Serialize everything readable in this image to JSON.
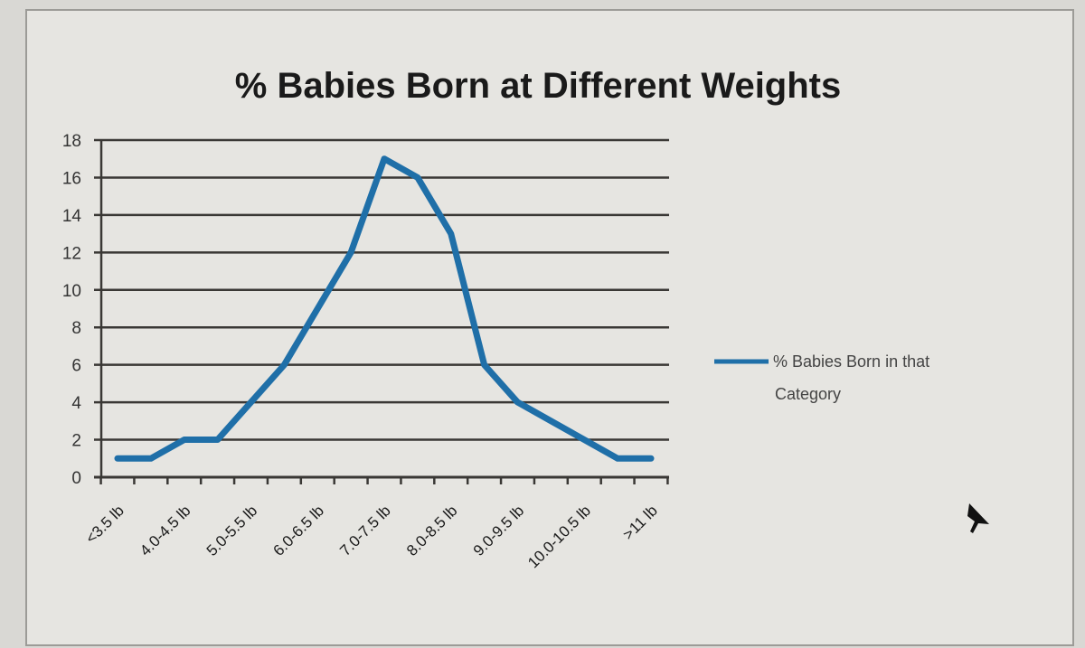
{
  "chart_data": {
    "type": "line",
    "title": "% Babies Born at Different Weights",
    "xlabel": "",
    "ylabel": "",
    "ylim": [
      0,
      18
    ],
    "y_ticks": [
      0,
      2,
      4,
      6,
      8,
      10,
      12,
      14,
      16,
      18
    ],
    "grid": true,
    "x": [
      1,
      2,
      3,
      4,
      5,
      6,
      7,
      8,
      9,
      10,
      11,
      12,
      13,
      14,
      15,
      16,
      17
    ],
    "x_tick_labels": [
      {
        "x": 1,
        "label": "<3.5 lb"
      },
      {
        "x": 3,
        "label": "4.0-4.5 lb"
      },
      {
        "x": 5,
        "label": "5.0-5.5 lb"
      },
      {
        "x": 7,
        "label": "6.0-6.5 lb"
      },
      {
        "x": 9,
        "label": "7.0-7.5 lb"
      },
      {
        "x": 11,
        "label": "8.0-8.5 lb"
      },
      {
        "x": 13,
        "label": "9.0-9.5 lb"
      },
      {
        "x": 15,
        "label": "10.0-10.5 lb"
      },
      {
        "x": 17,
        "label": ">11 lb"
      }
    ],
    "series": [
      {
        "name": "% Babies Born in that Category",
        "legend_lines": [
          "% Babies Born in that",
          "Category"
        ],
        "color": "#1f6fa8",
        "values": [
          1,
          1,
          2,
          2,
          4,
          6,
          9,
          12,
          17,
          16,
          13,
          6,
          4,
          3,
          2,
          1,
          1
        ]
      }
    ],
    "legend_position": "right"
  }
}
